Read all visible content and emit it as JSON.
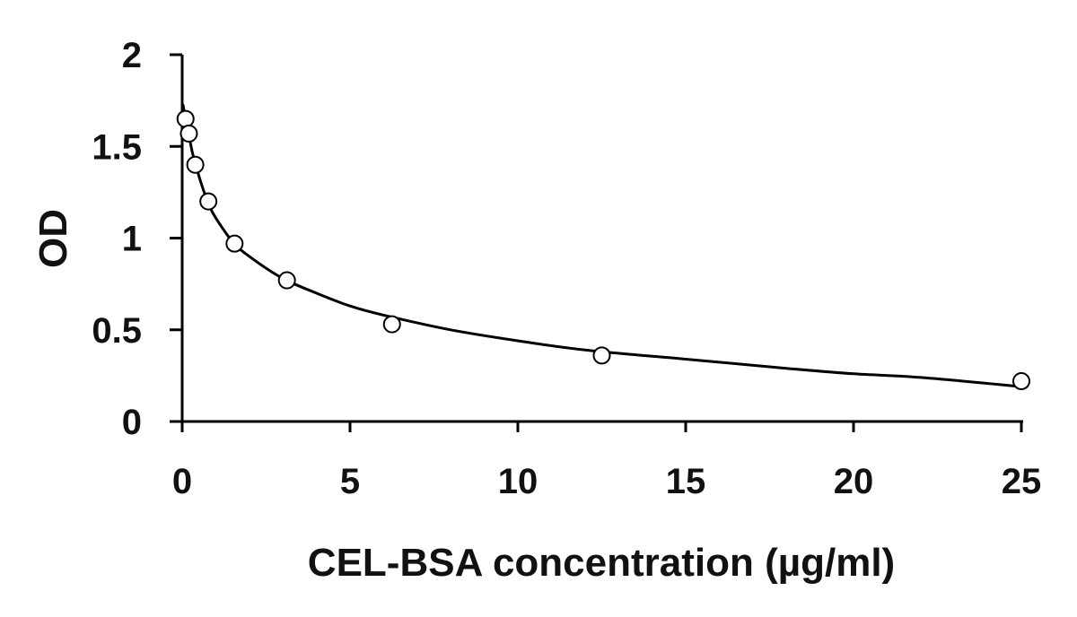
{
  "chart_data": {
    "type": "scatter",
    "xlabel": "CEL-BSA concentration (µg/ml)",
    "ylabel": "OD",
    "xlim": [
      0,
      25
    ],
    "ylim": [
      0,
      2
    ],
    "xticks": [
      0,
      5,
      10,
      15,
      20,
      25
    ],
    "xtick_labels": [
      "0",
      "5",
      "10",
      "15",
      "20",
      "25"
    ],
    "yticks": [
      0,
      0.5,
      1,
      1.5,
      2
    ],
    "ytick_labels": [
      "0",
      "0.5",
      "1",
      "1.5",
      "2"
    ],
    "grid": false,
    "series": [
      {
        "x": [
          0.1,
          0.2,
          0.39,
          0.78,
          1.56,
          3.12,
          6.25,
          12.5,
          25
        ],
        "y": [
          1.65,
          1.57,
          1.4,
          1.2,
          0.97,
          0.77,
          0.53,
          0.36,
          0.22
        ],
        "marker": "open-circle"
      }
    ],
    "fit_curve": {
      "x": [
        0.02,
        0.05,
        0.1,
        0.2,
        0.3,
        0.4,
        0.6,
        0.8,
        1.0,
        1.5,
        2.0,
        3.0,
        4.0,
        5.0,
        6.0,
        8.0,
        10.0,
        12.0,
        15.0,
        18.0,
        20.0,
        22.0,
        25.0
      ],
      "y": [
        1.73,
        1.7,
        1.65,
        1.56,
        1.47,
        1.4,
        1.28,
        1.18,
        1.11,
        0.98,
        0.9,
        0.78,
        0.7,
        0.63,
        0.58,
        0.5,
        0.44,
        0.39,
        0.34,
        0.29,
        0.26,
        0.24,
        0.19
      ]
    },
    "colors": {
      "line": "#000000",
      "marker_stroke": "#000000",
      "marker_fill": "#ffffff"
    }
  }
}
